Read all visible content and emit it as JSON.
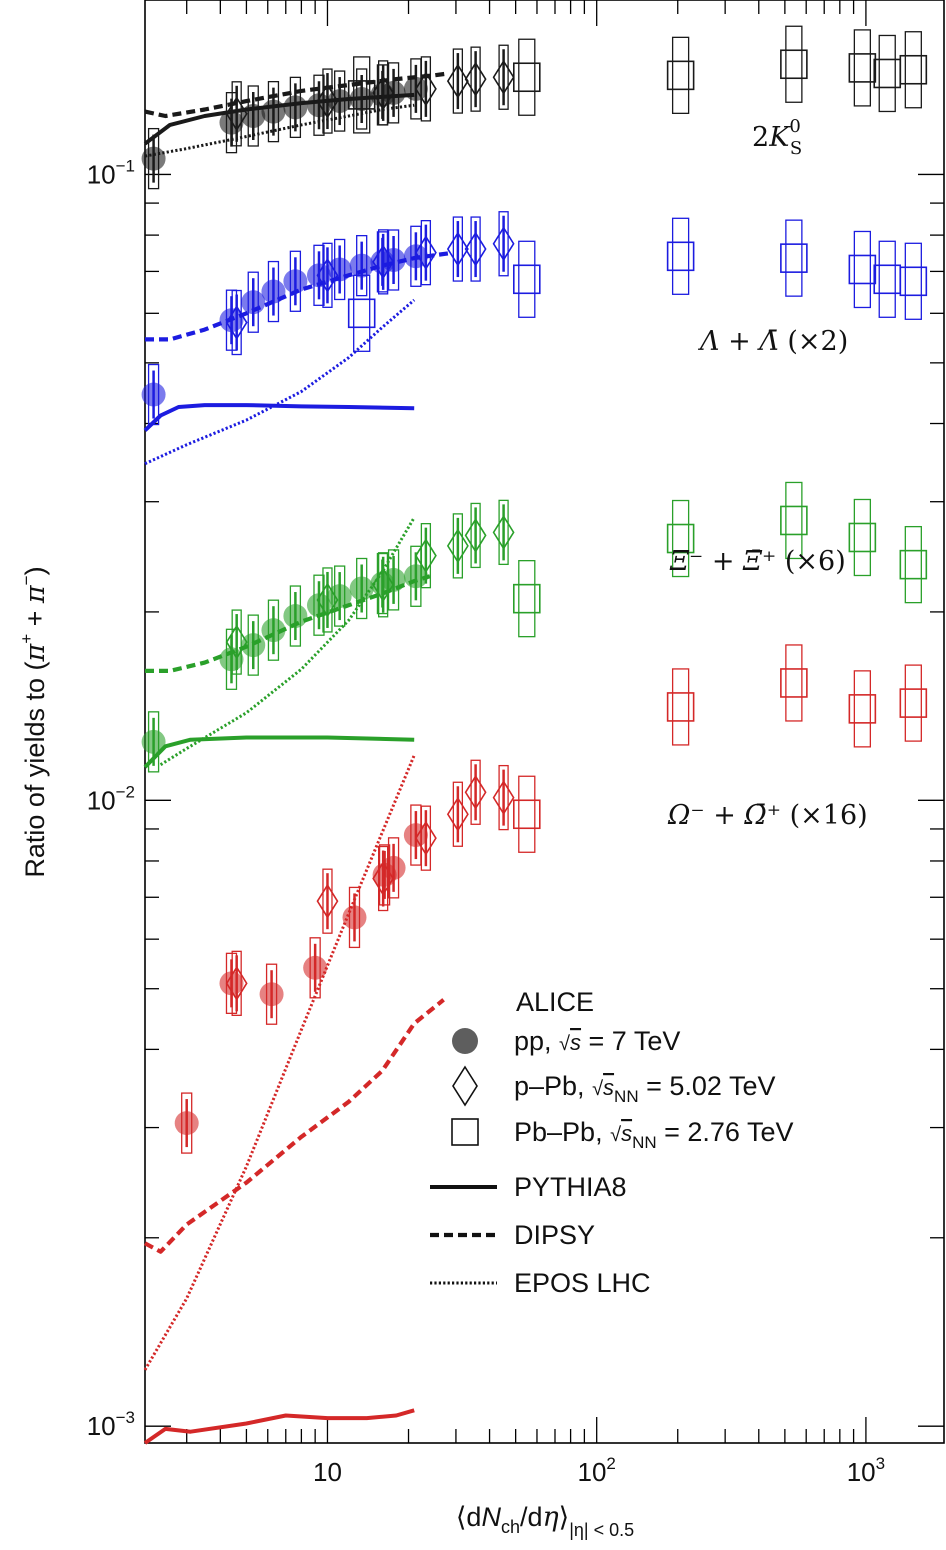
{
  "chart_data": {
    "type": "scatter",
    "x_scale": "log",
    "y_scale": "log",
    "xlim": [
      2.1,
      1950
    ],
    "ylim": [
      0.00094,
      0.19
    ],
    "x_ticks": [
      {
        "value": 10,
        "label": "10"
      },
      {
        "value": 100,
        "label": "10",
        "exp": "2"
      },
      {
        "value": 1000,
        "label": "10",
        "exp": "3"
      }
    ],
    "y_ticks": [
      {
        "value": 0.1,
        "label": "10",
        "exp": "−1"
      },
      {
        "value": 0.01,
        "label": "10",
        "exp": "−2"
      },
      {
        "value": 0.001,
        "label": "10",
        "exp": "−3"
      }
    ],
    "ylabel": {
      "pre": "Ratio of yields to (",
      "pi1": "π",
      "sup1": "+",
      "mid": " + ",
      "pi2": "π",
      "sup2": "−",
      "post": ")"
    },
    "xlabel": {
      "open": "⟨d",
      "n": "N",
      "sub": "ch",
      "slash": "/d",
      "eta": "η",
      "close": "⟩",
      "range": "|η| < 0.5"
    },
    "species": [
      {
        "key": "k0s",
        "color": "#1a1a1a",
        "label": {
          "pre": "2",
          "sym": "K",
          "sup": "0",
          "sub": "S",
          "post": ""
        },
        "pp": [
          [
            2.26,
            0.106
          ],
          [
            4.4,
            0.121
          ],
          [
            5.3,
            0.124
          ],
          [
            6.3,
            0.126
          ],
          [
            7.6,
            0.128
          ],
          [
            9.3,
            0.129
          ],
          [
            11.1,
            0.131
          ],
          [
            13.4,
            0.132
          ],
          [
            16.0,
            0.134
          ],
          [
            17.6,
            0.135
          ],
          [
            21.3,
            0.137
          ]
        ],
        "ppb": [
          [
            4.6,
            0.125
          ],
          [
            10.0,
            0.131
          ],
          [
            16.1,
            0.135
          ],
          [
            23.2,
            0.137
          ],
          [
            30.5,
            0.141
          ],
          [
            35.5,
            0.142
          ],
          [
            45.1,
            0.143
          ]
        ],
        "pbpb": [
          [
            13.4,
            0.134
          ],
          [
            55.0,
            0.143
          ],
          [
            205,
            0.144
          ],
          [
            540,
            0.15
          ],
          [
            970,
            0.148
          ],
          [
            1200,
            0.145
          ],
          [
            1500,
            0.147
          ]
        ],
        "pythia": [
          [
            2.1,
            0.112
          ],
          [
            2.6,
            0.12
          ],
          [
            3.5,
            0.124
          ],
          [
            5,
            0.127
          ],
          [
            8,
            0.13
          ],
          [
            12,
            0.132
          ],
          [
            16,
            0.133
          ],
          [
            21,
            0.134
          ]
        ],
        "dipsy": [
          [
            2.1,
            0.126
          ],
          [
            2.5,
            0.124
          ],
          [
            3.5,
            0.127
          ],
          [
            5,
            0.131
          ],
          [
            8,
            0.136
          ],
          [
            12,
            0.139
          ],
          [
            18,
            0.142
          ],
          [
            25,
            0.144
          ],
          [
            28,
            0.145
          ]
        ],
        "epos": [
          [
            2.1,
            0.107
          ],
          [
            3,
            0.11
          ],
          [
            5,
            0.115
          ],
          [
            8,
            0.12
          ],
          [
            12,
            0.124
          ],
          [
            16,
            0.127
          ],
          [
            21,
            0.129
          ]
        ]
      },
      {
        "key": "lambda",
        "color": "#1c1ce0",
        "label": {
          "pre": "",
          "sym": "Λ + Λ̄",
          "sup": "",
          "sub": "",
          "post": " (×2)"
        },
        "pp": [
          [
            2.26,
            0.0445
          ],
          [
            4.4,
            0.0585
          ],
          [
            5.3,
            0.0625
          ],
          [
            6.3,
            0.065
          ],
          [
            7.6,
            0.0675
          ],
          [
            9.3,
            0.069
          ],
          [
            11.1,
            0.0705
          ],
          [
            13.4,
            0.0715
          ],
          [
            16.0,
            0.0725
          ],
          [
            17.6,
            0.073
          ],
          [
            21.3,
            0.074
          ]
        ],
        "ppb": [
          [
            4.6,
            0.058
          ],
          [
            10.0,
            0.069
          ],
          [
            16.1,
            0.0725
          ],
          [
            23.2,
            0.075
          ],
          [
            30.5,
            0.076
          ],
          [
            35.5,
            0.076
          ],
          [
            45.1,
            0.0775
          ]
        ],
        "pbpb": [
          [
            13.4,
            0.06
          ],
          [
            55.0,
            0.068
          ],
          [
            205,
            0.074
          ],
          [
            540,
            0.0735
          ],
          [
            970,
            0.0705
          ],
          [
            1200,
            0.068
          ],
          [
            1500,
            0.0675
          ]
        ],
        "pythia": [
          [
            2.1,
            0.039
          ],
          [
            2.4,
            0.0412
          ],
          [
            2.8,
            0.0425
          ],
          [
            3.5,
            0.0428
          ],
          [
            5,
            0.0428
          ],
          [
            8,
            0.0426
          ],
          [
            12,
            0.0425
          ],
          [
            21,
            0.0423
          ]
        ],
        "dipsy": [
          [
            2.1,
            0.0545
          ],
          [
            2.6,
            0.0545
          ],
          [
            3.5,
            0.0565
          ],
          [
            5,
            0.06
          ],
          [
            8,
            0.0655
          ],
          [
            12,
            0.069
          ],
          [
            16,
            0.0715
          ],
          [
            21,
            0.0735
          ],
          [
            28,
            0.0748
          ]
        ],
        "epos": [
          [
            2.1,
            0.0345
          ],
          [
            3,
            0.037
          ],
          [
            5,
            0.0405
          ],
          [
            8,
            0.045
          ],
          [
            12,
            0.051
          ],
          [
            16,
            0.057
          ],
          [
            21,
            0.063
          ]
        ]
      },
      {
        "key": "xi",
        "color": "#2aa02a",
        "label": {
          "pre": "",
          "sym": "Ξ⁻ + Ξ̄⁺",
          "sup": "",
          "sub": "",
          "post": " (×6)"
        },
        "pp": [
          [
            2.26,
            0.0124
          ],
          [
            4.4,
            0.0168
          ],
          [
            5.3,
            0.0177
          ],
          [
            6.3,
            0.0187
          ],
          [
            7.6,
            0.0197
          ],
          [
            9.3,
            0.0205
          ],
          [
            11.1,
            0.0212
          ],
          [
            13.4,
            0.0218
          ],
          [
            16.0,
            0.0222
          ],
          [
            17.6,
            0.0225
          ],
          [
            21.3,
            0.0228
          ]
        ],
        "ppb": [
          [
            4.6,
            0.0179
          ],
          [
            10.0,
            0.0209
          ],
          [
            16.1,
            0.0221
          ],
          [
            23.2,
            0.0246
          ],
          [
            30.5,
            0.0255
          ],
          [
            35.5,
            0.0265
          ],
          [
            45.1,
            0.0268
          ]
        ],
        "pbpb": [
          [
            55.0,
            0.021
          ],
          [
            205,
            0.0262
          ],
          [
            540,
            0.028
          ],
          [
            970,
            0.0263
          ],
          [
            1500,
            0.0238
          ]
        ],
        "pythia": [
          [
            2.1,
            0.0113
          ],
          [
            2.5,
            0.0122
          ],
          [
            3.1,
            0.0125
          ],
          [
            5,
            0.0126
          ],
          [
            10,
            0.0126
          ],
          [
            21,
            0.0125
          ]
        ],
        "dipsy": [
          [
            2.1,
            0.0161
          ],
          [
            2.6,
            0.0161
          ],
          [
            3.5,
            0.0166
          ],
          [
            5,
            0.0176
          ],
          [
            8,
            0.0193
          ],
          [
            12,
            0.0205
          ],
          [
            16,
            0.0214
          ],
          [
            21,
            0.0224
          ],
          [
            24,
            0.0228
          ]
        ],
        "epos": [
          [
            2.4,
            0.0114
          ],
          [
            3,
            0.0121
          ],
          [
            5,
            0.0138
          ],
          [
            8,
            0.0162
          ],
          [
            12,
            0.0194
          ],
          [
            16,
            0.0232
          ],
          [
            21,
            0.0283
          ]
        ]
      },
      {
        "key": "omega",
        "color": "#d42828",
        "label": {
          "pre": "",
          "sym": "Ω⁻ + Ω̄⁺",
          "sup": "",
          "sub": "",
          "post": " (×16)"
        },
        "pp": [
          [
            3.0,
            0.00305
          ],
          [
            4.4,
            0.0051
          ],
          [
            6.2,
            0.0049
          ],
          [
            9.0,
            0.0054
          ],
          [
            12.6,
            0.0065
          ],
          [
            16.3,
            0.0076
          ],
          [
            17.6,
            0.0078
          ],
          [
            21.3,
            0.0088
          ]
        ],
        "ppb": [
          [
            4.6,
            0.0051
          ],
          [
            10.0,
            0.0069
          ],
          [
            16.1,
            0.0075
          ],
          [
            23.2,
            0.0087
          ],
          [
            30.5,
            0.0095
          ],
          [
            35.5,
            0.0103
          ],
          [
            45.1,
            0.0101
          ]
        ],
        "pbpb": [
          [
            55.0,
            0.0095
          ],
          [
            205,
            0.0141
          ],
          [
            540,
            0.0154
          ],
          [
            970,
            0.014
          ],
          [
            1500,
            0.0143
          ]
        ],
        "pythia": [
          [
            2.1,
            0.00094
          ],
          [
            2.5,
            0.00099
          ],
          [
            3.1,
            0.00098
          ],
          [
            5,
            0.00101
          ],
          [
            7,
            0.00104
          ],
          [
            10,
            0.00103
          ],
          [
            14,
            0.00103
          ],
          [
            18,
            0.00104
          ],
          [
            21,
            0.00106
          ]
        ],
        "dipsy": [
          [
            2.1,
            0.00196
          ],
          [
            2.4,
            0.0019
          ],
          [
            3,
            0.0021
          ],
          [
            5,
            0.00245
          ],
          [
            8,
            0.0029
          ],
          [
            12,
            0.0033
          ],
          [
            16,
            0.0037
          ],
          [
            21,
            0.0044
          ],
          [
            27,
            0.0048
          ]
        ],
        "epos": [
          [
            2.1,
            0.00123
          ],
          [
            3,
            0.0016
          ],
          [
            5,
            0.0026
          ],
          [
            8,
            0.0043
          ],
          [
            12,
            0.0066
          ],
          [
            16,
            0.0089
          ],
          [
            21,
            0.0118
          ]
        ]
      }
    ],
    "legend": {
      "title": "ALICE",
      "entries": [
        {
          "marker": "circle",
          "label": "pp, √s = 7 TeV"
        },
        {
          "marker": "diamond",
          "label": "p–Pb, √s_NN = 5.02 TeV"
        },
        {
          "marker": "square",
          "label": "Pb–Pb, √s_NN = 2.76 TeV"
        },
        {
          "marker": "solid",
          "label": "PYTHIA8"
        },
        {
          "marker": "dashed",
          "label": "DIPSY"
        },
        {
          "marker": "dotted",
          "label": "EPOS LHC"
        }
      ],
      "systems": {
        "pp": {
          "pre": "pp, ",
          "root": "√",
          "var": "s",
          "sub": "",
          "post": " = 7 TeV"
        },
        "ppb": {
          "pre": "p–Pb, ",
          "root": "√",
          "var": "s",
          "sub": "NN",
          "post": " = 5.02 TeV"
        },
        "pbpb": {
          "pre": "Pb–Pb, ",
          "root": "√",
          "var": "s",
          "sub": "NN",
          "post": " = 2.76 TeV"
        }
      }
    }
  }
}
